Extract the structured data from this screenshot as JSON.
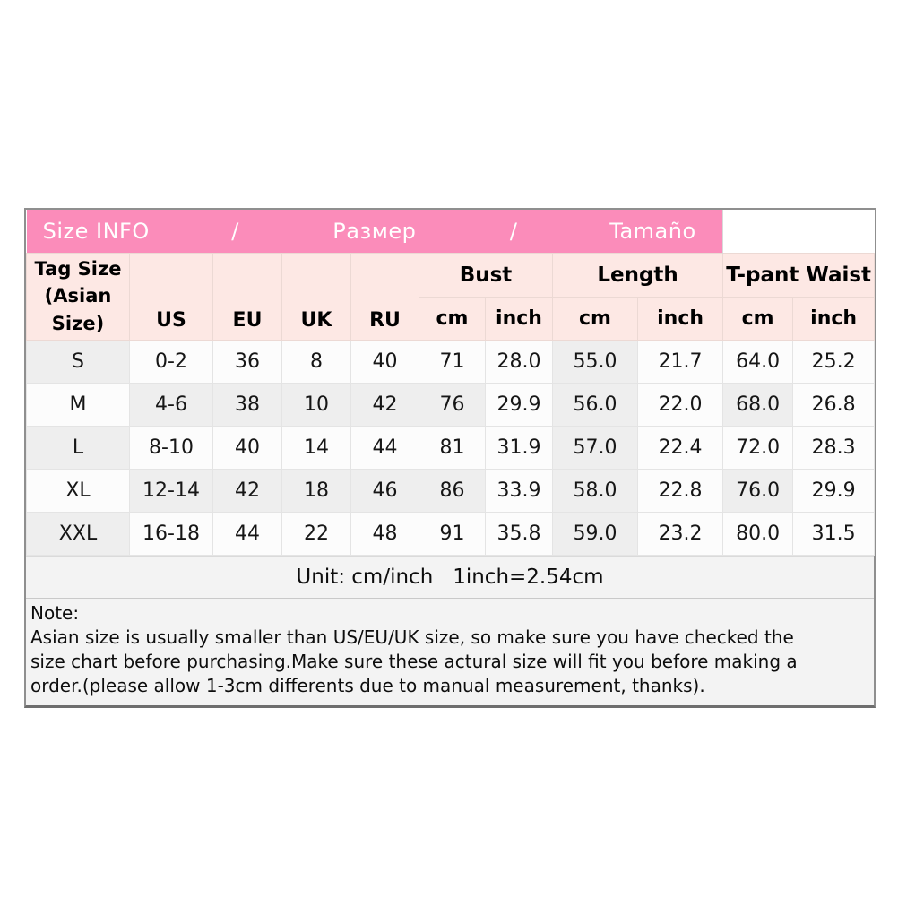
{
  "title_bar": {
    "segments": [
      "Size INFO",
      "/",
      "Размер",
      "/",
      "Tamaño"
    ]
  },
  "header": {
    "tag_size": "Tag Size\n(Asian\nSize)",
    "regions": [
      "US",
      "EU",
      "UK",
      "RU"
    ],
    "groups": [
      "Bust",
      "Length",
      "T-pant Waist"
    ],
    "units": [
      "cm",
      "inch",
      "cm",
      "inch",
      "cm",
      "inch"
    ]
  },
  "rows": [
    [
      "S",
      "0-2",
      "36",
      "8",
      "40",
      "71",
      "28.0",
      "55.0",
      "21.7",
      "64.0",
      "25.2"
    ],
    [
      "M",
      "4-6",
      "38",
      "10",
      "42",
      "76",
      "29.9",
      "56.0",
      "22.0",
      "68.0",
      "26.8"
    ],
    [
      "L",
      "8-10",
      "40",
      "14",
      "44",
      "81",
      "31.9",
      "57.0",
      "22.4",
      "72.0",
      "28.3"
    ],
    [
      "XL",
      "12-14",
      "42",
      "18",
      "46",
      "86",
      "33.9",
      "58.0",
      "22.8",
      "76.0",
      "29.9"
    ],
    [
      "XXL",
      "16-18",
      "44",
      "22",
      "48",
      "91",
      "35.8",
      "59.0",
      "23.2",
      "80.0",
      "31.5"
    ]
  ],
  "footer": {
    "unit_text": "Unit: cm/inch   1inch=2.54cm"
  },
  "note": {
    "lines": [
      "Note:",
      "Asian size is usually smaller than US/EU/UK size, so make sure you have checked the",
      "size chart before purchasing.Make sure these actural size will fit you before making a",
      "order.(please allow 1-3cm differents due to manual measurement, thanks)."
    ]
  },
  "colors": {
    "banner_pink": "#fb8cba",
    "header_pink": "#fde8e4",
    "shade_gray": "#eeeeee",
    "footer_gray": "#f3f3f3",
    "outer_border": "#8f8f8f"
  }
}
